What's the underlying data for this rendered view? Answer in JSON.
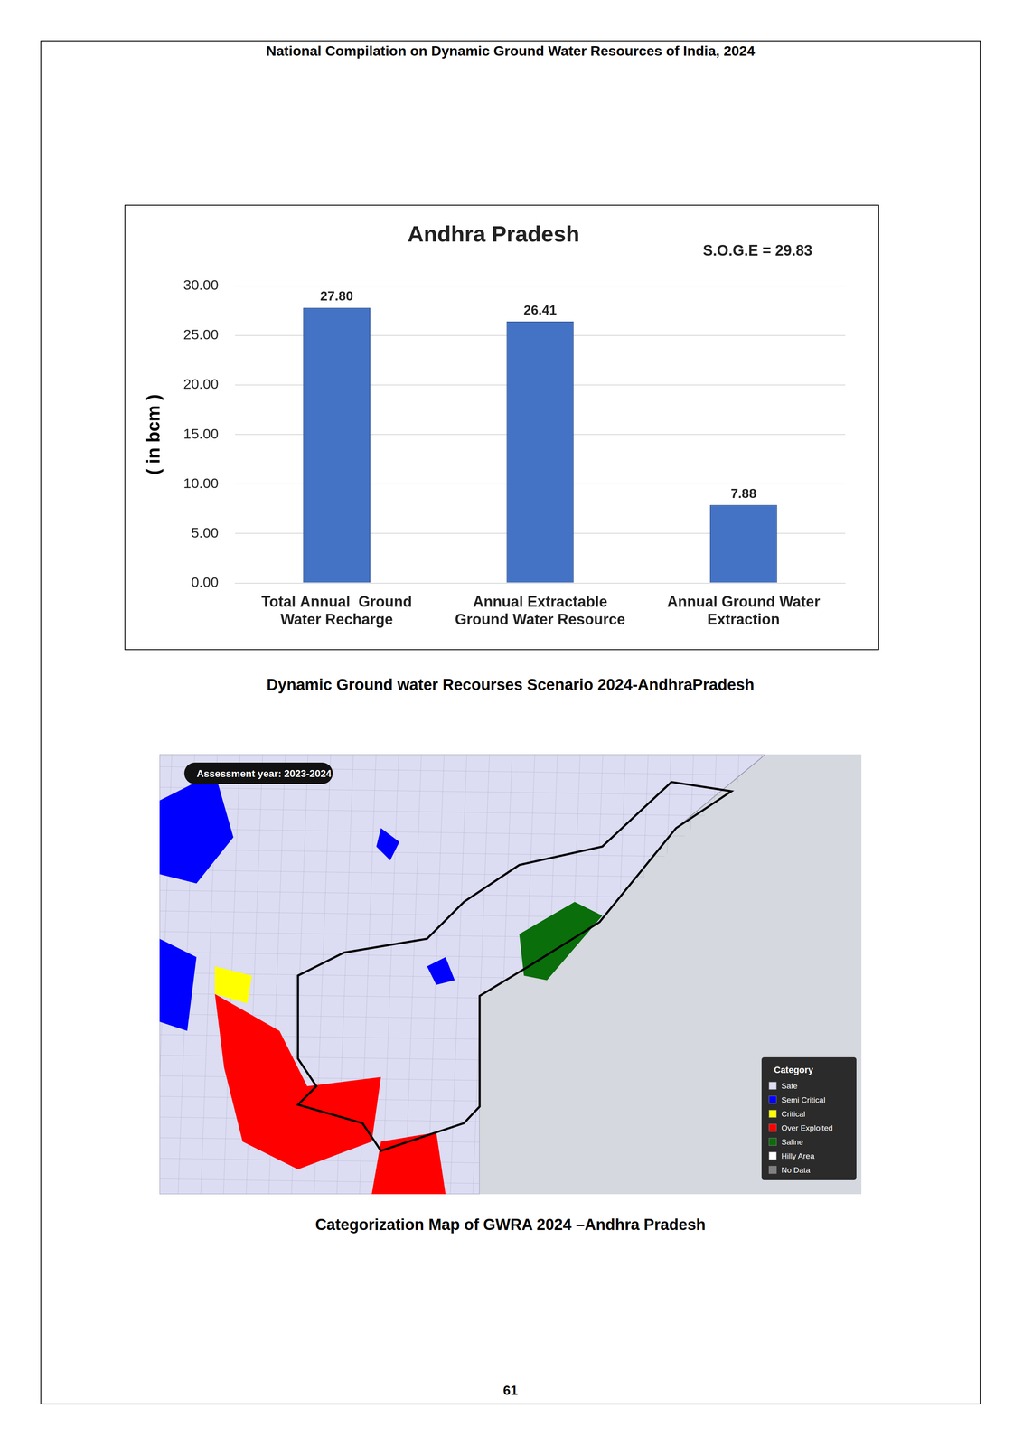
{
  "header": "National Compilation on Dynamic Ground Water Resources of India, 2024",
  "chart_data": {
    "type": "bar",
    "title": "Andhra Pradesh",
    "annotation": "S.O.G.E = 29.83",
    "y_label": "( in bcm )",
    "categories": [
      [
        "Total Annual  Ground",
        "Water Recharge"
      ],
      [
        "Annual Extractable",
        "Ground Water Resource"
      ],
      [
        "Annual Ground Water",
        "Extraction"
      ]
    ],
    "values": [
      27.8,
      26.41,
      7.88
    ],
    "value_labels": [
      "27.80",
      "26.41",
      "7.88"
    ],
    "color": "#4472c4",
    "ylim": [
      0,
      30
    ],
    "yticks": [
      {
        "value": 0,
        "label": "0.00"
      },
      {
        "value": 5,
        "label": "5.00"
      },
      {
        "value": 10,
        "label": "10.00"
      },
      {
        "value": 15,
        "label": "15.00"
      },
      {
        "value": 20,
        "label": "20.00"
      },
      {
        "value": 25,
        "label": "25.00"
      },
      {
        "value": 30,
        "label": "30.00"
      }
    ],
    "grid": true,
    "data_labels": true,
    "legend": false
  },
  "chart_caption": "Dynamic Ground water Recourses Scenario 2024-AndhraPradesh",
  "map": {
    "badge": "Assessment year: 2023-2024",
    "legend_title": "Category",
    "legend": [
      {
        "label": "Safe",
        "color": "#dcdcf2"
      },
      {
        "label": "Semi Critical",
        "color": "#0000ff"
      },
      {
        "label": "Critical",
        "color": "#ffff00"
      },
      {
        "label": "Over Exploited",
        "color": "#ff0000"
      },
      {
        "label": "Saline",
        "color": "#0a6e0a"
      },
      {
        "label": "Hilly Area",
        "color": "#ffffff"
      },
      {
        "label": "No Data",
        "color": "#808080"
      }
    ]
  },
  "map_caption": "Categorization Map of GWRA 2024 –Andhra Pradesh",
  "page_number": "61"
}
